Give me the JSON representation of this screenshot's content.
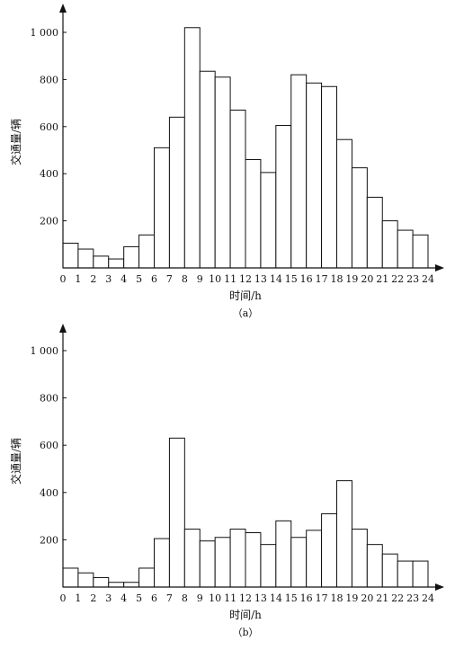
{
  "chart_data": [
    {
      "type": "bar",
      "caption": "（a）",
      "xlabel": "时间/h",
      "ylabel": "交通量/辆",
      "ylim": [
        0,
        1000
      ],
      "yticks": [
        200,
        400,
        600,
        800,
        1000
      ],
      "ytick_labels": [
        "200",
        "400",
        "600",
        "800",
        "1 000"
      ],
      "xticks": [
        "0",
        "1",
        "2",
        "3",
        "4",
        "5",
        "6",
        "7",
        "8",
        "9",
        "10",
        "11",
        "12",
        "13",
        "14",
        "15",
        "16",
        "17",
        "18",
        "19",
        "20",
        "21",
        "22",
        "23",
        "24"
      ],
      "values": [
        105,
        80,
        50,
        38,
        90,
        140,
        510,
        640,
        1020,
        835,
        810,
        670,
        460,
        405,
        605,
        820,
        785,
        770,
        545,
        425,
        300,
        200,
        160,
        140
      ],
      "grid": false
    },
    {
      "type": "bar",
      "caption": "（b）",
      "xlabel": "时间/h",
      "ylabel": "交通量/辆",
      "ylim": [
        0,
        1000
      ],
      "yticks": [
        200,
        400,
        600,
        800,
        1000
      ],
      "ytick_labels": [
        "200",
        "400",
        "600",
        "800",
        "1 000"
      ],
      "xticks": [
        "0",
        "1",
        "2",
        "3",
        "4",
        "5",
        "6",
        "7",
        "8",
        "9",
        "10",
        "11",
        "12",
        "13",
        "14",
        "15",
        "16",
        "17",
        "18",
        "19",
        "20",
        "21",
        "22",
        "23",
        "24"
      ],
      "values": [
        80,
        60,
        40,
        20,
        20,
        80,
        205,
        630,
        245,
        195,
        210,
        245,
        230,
        180,
        280,
        210,
        240,
        310,
        450,
        245,
        180,
        140,
        110,
        110
      ],
      "grid": false
    }
  ]
}
